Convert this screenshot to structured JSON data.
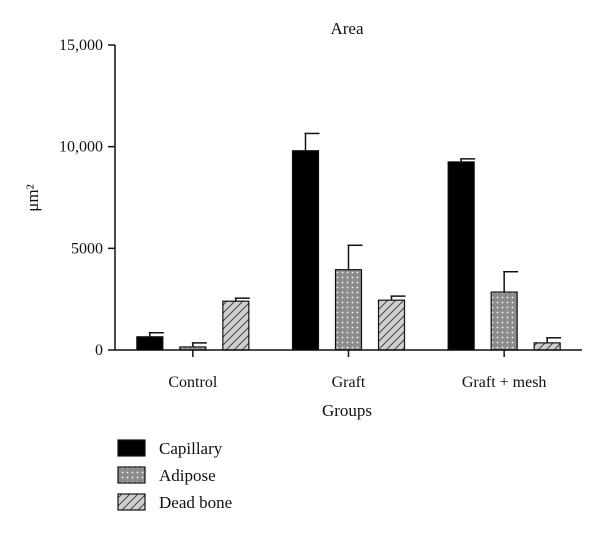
{
  "chart_data": {
    "type": "bar",
    "title": "Area",
    "xlabel": "Groups",
    "ylabel": "μm²",
    "ylim": [
      0,
      15000
    ],
    "yticks": [
      {
        "value": 0,
        "label": "0"
      },
      {
        "value": 5000,
        "label": "5000"
      },
      {
        "value": 10000,
        "label": "10,000"
      },
      {
        "value": 15000,
        "label": "15,000"
      }
    ],
    "categories": [
      "Control",
      "Graft",
      "Graft + mesh"
    ],
    "series": [
      {
        "name": "Capillary",
        "pattern": "solid",
        "color": "#000000",
        "values": [
          650,
          9800,
          9250
        ],
        "errors": [
          200,
          850,
          150
        ]
      },
      {
        "name": "Adipose",
        "pattern": "dots",
        "color": "#8c8c8c",
        "values": [
          150,
          3950,
          2850
        ],
        "errors": [
          200,
          1200,
          1000
        ]
      },
      {
        "name": "Dead bone",
        "pattern": "hatch",
        "color": "#d0d0d0",
        "values": [
          2400,
          2450,
          350
        ],
        "errors": [
          150,
          200,
          250
        ]
      }
    ],
    "grid": false,
    "legend_position": "bottom-left"
  }
}
